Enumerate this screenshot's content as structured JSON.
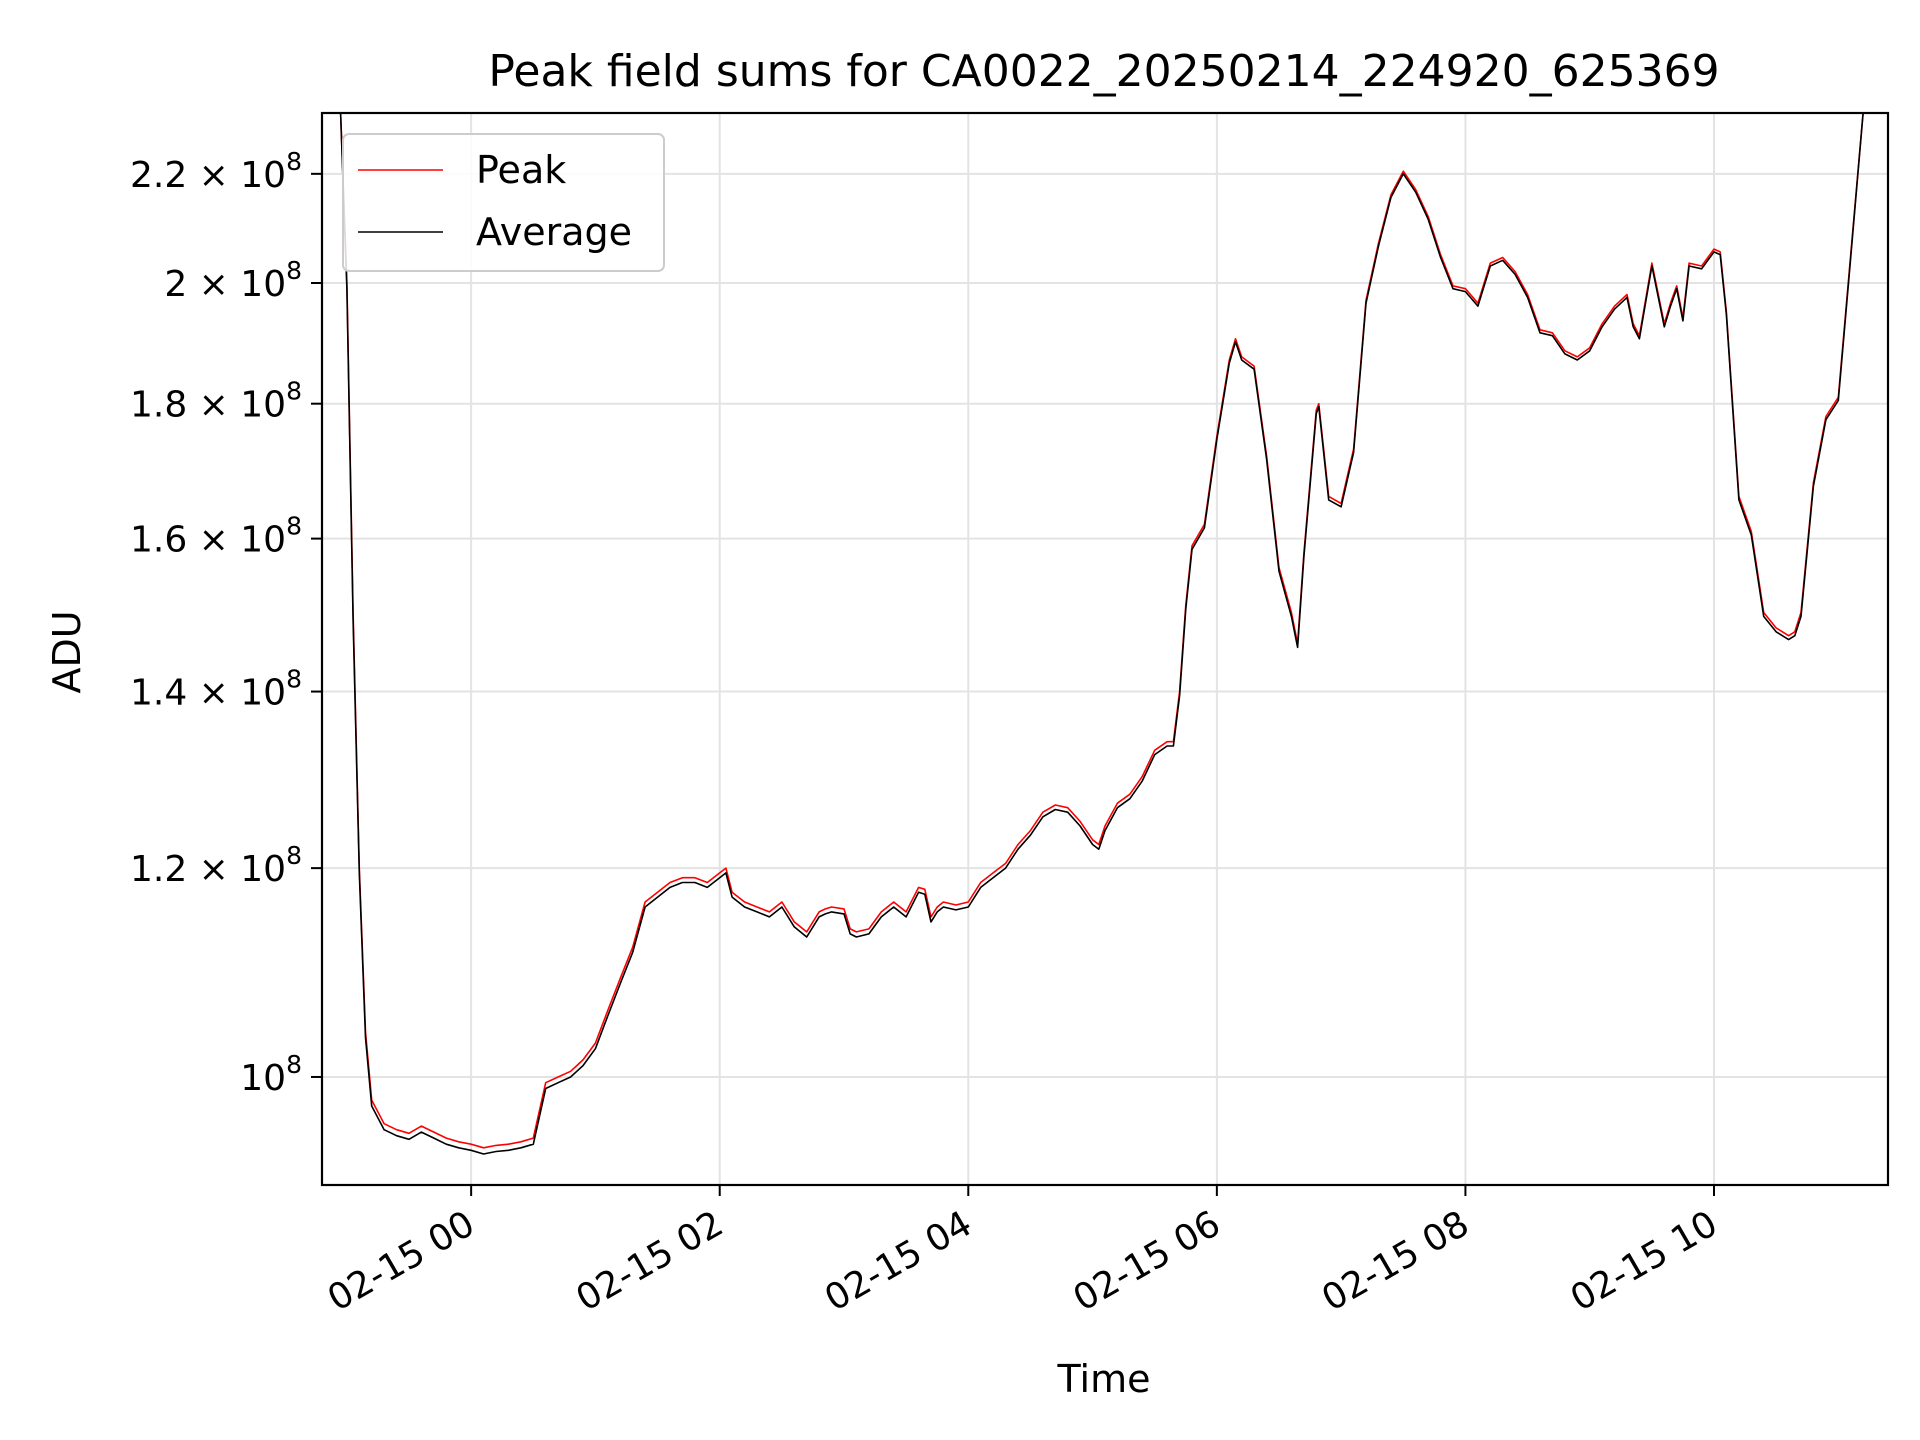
{
  "chart_data": {
    "type": "line",
    "title": "Peak field sums for CA0022_20250214_224920_625369",
    "xlabel": "Time",
    "ylabel": "ADU",
    "yscale": "log",
    "ylim": [
      91000000,
      232000000
    ],
    "x_unit": "hours (relative to 02-15 00:00)",
    "xlim": [
      -1.2,
      11.4
    ],
    "grid": true,
    "legend_position": "upper left",
    "x_ticks": [
      {
        "value": 0,
        "label": "02-15 00"
      },
      {
        "value": 2,
        "label": "02-15 02"
      },
      {
        "value": 4,
        "label": "02-15 04"
      },
      {
        "value": 6,
        "label": "02-15 06"
      },
      {
        "value": 8,
        "label": "02-15 08"
      },
      {
        "value": 10,
        "label": "02-15 10"
      }
    ],
    "y_ticks": [
      {
        "value": 100000000,
        "mantissa": "",
        "base": "10",
        "exp": "8"
      },
      {
        "value": 120000000,
        "mantissa": "1.2 × ",
        "base": "10",
        "exp": "8"
      },
      {
        "value": 140000000,
        "mantissa": "1.4 × ",
        "base": "10",
        "exp": "8"
      },
      {
        "value": 160000000,
        "mantissa": "1.6 × ",
        "base": "10",
        "exp": "8"
      },
      {
        "value": 180000000,
        "mantissa": "1.8 × ",
        "base": "10",
        "exp": "8"
      },
      {
        "value": 200000000,
        "mantissa": "2 × ",
        "base": "10",
        "exp": "8"
      },
      {
        "value": 220000000,
        "mantissa": "2.2 × ",
        "base": "10",
        "exp": "8"
      }
    ],
    "series": [
      {
        "name": "Peak",
        "color": "#ff0000",
        "x": [
          -1.08,
          -1.05,
          -1.0,
          -0.95,
          -0.9,
          -0.85,
          -0.8,
          -0.7,
          -0.6,
          -0.5,
          -0.4,
          -0.3,
          -0.2,
          -0.1,
          0.0,
          0.1,
          0.2,
          0.3,
          0.4,
          0.5,
          0.6,
          0.7,
          0.8,
          0.85,
          0.9,
          1.0,
          1.1,
          1.2,
          1.3,
          1.4,
          1.5,
          1.6,
          1.7,
          1.8,
          1.9,
          2.0,
          2.05,
          2.1,
          2.2,
          2.3,
          2.4,
          2.5,
          2.6,
          2.7,
          2.8,
          2.85,
          2.9,
          3.0,
          3.05,
          3.1,
          3.2,
          3.3,
          3.4,
          3.5,
          3.6,
          3.65,
          3.7,
          3.75,
          3.8,
          3.9,
          4.0,
          4.1,
          4.2,
          4.3,
          4.4,
          4.5,
          4.6,
          4.7,
          4.8,
          4.9,
          5.0,
          5.05,
          5.1,
          5.2,
          5.3,
          5.4,
          5.5,
          5.6,
          5.65,
          5.7,
          5.75,
          5.8,
          5.9,
          6.0,
          6.1,
          6.15,
          6.2,
          6.3,
          6.4,
          6.5,
          6.6,
          6.65,
          6.7,
          6.8,
          6.82,
          6.9,
          7.0,
          7.1,
          7.2,
          7.3,
          7.4,
          7.5,
          7.6,
          7.7,
          7.8,
          7.9,
          8.0,
          8.1,
          8.2,
          8.3,
          8.4,
          8.5,
          8.6,
          8.7,
          8.8,
          8.9,
          9.0,
          9.1,
          9.2,
          9.3,
          9.35,
          9.4,
          9.5,
          9.6,
          9.65,
          9.7,
          9.75,
          9.8,
          9.9,
          10.0,
          10.05,
          10.1,
          10.2,
          10.3,
          10.4,
          10.5,
          10.6,
          10.65,
          10.7,
          10.8,
          10.9,
          11.0,
          11.1,
          11.2,
          11.3,
          11.35
        ],
        "values": [
          232000000,
          232000000,
          200000000,
          150000000,
          120000000,
          104000000,
          98000000,
          96000000,
          95500000,
          95200000,
          95800000,
          95300000,
          94800000,
          94500000,
          94300000,
          94000000,
          94200000,
          94300000,
          94500000,
          94800000,
          99500000,
          100000000,
          100500000,
          101000000,
          101500000,
          103000000,
          106000000,
          109000000,
          112000000,
          116500000,
          117500000,
          118500000,
          119000000,
          119000000,
          118500000,
          119500000,
          120000000,
          117500000,
          116500000,
          116000000,
          115500000,
          116500000,
          114500000,
          113500000,
          115500000,
          115800000,
          116000000,
          115800000,
          113800000,
          113500000,
          113800000,
          115500000,
          116500000,
          115500000,
          118000000,
          117800000,
          115000000,
          116000000,
          116500000,
          116200000,
          116500000,
          118500000,
          119500000,
          120500000,
          122500000,
          124000000,
          126000000,
          126800000,
          126500000,
          125000000,
          123000000,
          122500000,
          124500000,
          127000000,
          128000000,
          130000000,
          133000000,
          134000000,
          134000000,
          140000000,
          151000000,
          159000000,
          162000000,
          175000000,
          187000000,
          190500000,
          187500000,
          186000000,
          172000000,
          156000000,
          150000000,
          146000000,
          158000000,
          179000000,
          180000000,
          166000000,
          165000000,
          173000000,
          197000000,
          207000000,
          216000000,
          220500000,
          217000000,
          212000000,
          205000000,
          199500000,
          199000000,
          196500000,
          203500000,
          204500000,
          202000000,
          198000000,
          192000000,
          191500000,
          188500000,
          187500000,
          189000000,
          193000000,
          196000000,
          198000000,
          193000000,
          191000000,
          203500000,
          193000000,
          196500000,
          199500000,
          194000000,
          203500000,
          203000000,
          206000000,
          205500000,
          195000000,
          166000000,
          161000000,
          150000000,
          148000000,
          147000000,
          147500000,
          150000000,
          168000000,
          178000000,
          181000000,
          205000000,
          232000000,
          232000000,
          232000000
        ]
      },
      {
        "name": "Average",
        "color": "#000000",
        "x": [
          -1.08,
          -1.05,
          -1.0,
          -0.95,
          -0.9,
          -0.85,
          -0.8,
          -0.7,
          -0.6,
          -0.5,
          -0.4,
          -0.3,
          -0.2,
          -0.1,
          0.0,
          0.1,
          0.2,
          0.3,
          0.4,
          0.5,
          0.6,
          0.7,
          0.8,
          0.85,
          0.9,
          1.0,
          1.1,
          1.2,
          1.3,
          1.4,
          1.5,
          1.6,
          1.7,
          1.8,
          1.9,
          2.0,
          2.05,
          2.1,
          2.2,
          2.3,
          2.4,
          2.5,
          2.6,
          2.7,
          2.8,
          2.85,
          2.9,
          3.0,
          3.05,
          3.1,
          3.2,
          3.3,
          3.4,
          3.5,
          3.6,
          3.65,
          3.7,
          3.75,
          3.8,
          3.9,
          4.0,
          4.1,
          4.2,
          4.3,
          4.4,
          4.5,
          4.6,
          4.7,
          4.8,
          4.9,
          5.0,
          5.05,
          5.1,
          5.2,
          5.3,
          5.4,
          5.5,
          5.6,
          5.65,
          5.7,
          5.75,
          5.8,
          5.9,
          6.0,
          6.1,
          6.15,
          6.2,
          6.3,
          6.4,
          6.5,
          6.6,
          6.65,
          6.7,
          6.8,
          6.82,
          6.9,
          7.0,
          7.1,
          7.2,
          7.3,
          7.4,
          7.5,
          7.6,
          7.7,
          7.8,
          7.9,
          8.0,
          8.1,
          8.2,
          8.3,
          8.4,
          8.5,
          8.6,
          8.7,
          8.8,
          8.9,
          9.0,
          9.1,
          9.2,
          9.3,
          9.35,
          9.4,
          9.5,
          9.6,
          9.65,
          9.7,
          9.75,
          9.8,
          9.9,
          10.0,
          10.05,
          10.1,
          10.2,
          10.3,
          10.4,
          10.5,
          10.6,
          10.65,
          10.7,
          10.8,
          10.9,
          11.0,
          11.1,
          11.2,
          11.3,
          11.35
        ],
        "values": [
          232000000,
          232000000,
          199000000,
          149000000,
          119500000,
          103500000,
          97500000,
          95500000,
          95000000,
          94700000,
          95300000,
          94800000,
          94300000,
          94000000,
          93800000,
          93500000,
          93700000,
          93800000,
          94000000,
          94300000,
          99000000,
          99500000,
          100000000,
          100500000,
          101000000,
          102500000,
          105500000,
          108500000,
          111500000,
          116000000,
          117000000,
          118000000,
          118500000,
          118500000,
          118000000,
          119000000,
          119500000,
          117000000,
          116000000,
          115500000,
          115000000,
          116000000,
          114000000,
          113000000,
          115000000,
          115300000,
          115500000,
          115300000,
          113300000,
          113000000,
          113300000,
          115000000,
          116000000,
          115000000,
          117500000,
          117300000,
          114500000,
          115500000,
          116000000,
          115700000,
          116000000,
          118000000,
          119000000,
          120000000,
          122000000,
          123500000,
          125500000,
          126300000,
          126000000,
          124500000,
          122500000,
          122000000,
          124000000,
          126500000,
          127500000,
          129500000,
          132500000,
          133500000,
          133500000,
          139500000,
          150500000,
          158500000,
          161500000,
          174500000,
          186500000,
          190000000,
          187000000,
          185500000,
          171500000,
          155500000,
          149500000,
          145500000,
          157500000,
          178500000,
          179500000,
          165500000,
          164500000,
          172500000,
          196500000,
          206500000,
          215500000,
          220000000,
          216500000,
          211500000,
          204500000,
          199000000,
          198500000,
          196000000,
          203000000,
          204000000,
          201500000,
          197500000,
          191500000,
          191000000,
          188000000,
          187000000,
          188500000,
          192500000,
          195500000,
          197500000,
          192500000,
          190500000,
          203000000,
          192500000,
          196000000,
          199000000,
          193500000,
          203000000,
          202500000,
          205500000,
          205000000,
          194500000,
          165500000,
          160500000,
          149500000,
          147500000,
          146500000,
          147000000,
          149500000,
          167500000,
          177500000,
          180500000,
          204500000,
          232000000,
          232000000,
          232000000
        ]
      }
    ]
  }
}
